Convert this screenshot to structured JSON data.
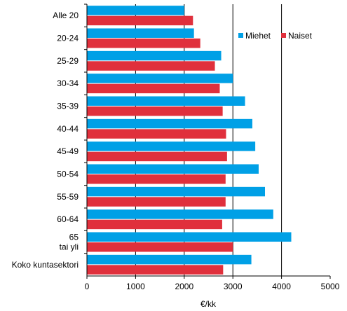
{
  "chart_data": {
    "type": "bar",
    "orientation": "horizontal",
    "categories": [
      [
        "Alle 20"
      ],
      [
        "20-24"
      ],
      [
        "25-29"
      ],
      [
        "30-34"
      ],
      [
        "35-39"
      ],
      [
        "40-44"
      ],
      [
        "45-49"
      ],
      [
        "50-54"
      ],
      [
        "55-59"
      ],
      [
        "60-64"
      ],
      [
        "65",
        "tai yli"
      ],
      [
        "Koko kuntasektori"
      ]
    ],
    "series": [
      {
        "name": "Miehet",
        "color": "#00a0e6",
        "values": [
          2000,
          2200,
          2760,
          3000,
          3250,
          3400,
          3460,
          3530,
          3660,
          3830,
          4200,
          3380
        ]
      },
      {
        "name": "Naiset",
        "color": "#e0303c",
        "values": [
          2180,
          2330,
          2630,
          2730,
          2790,
          2860,
          2880,
          2850,
          2850,
          2780,
          3000,
          2800
        ]
      }
    ],
    "xlabel": "€/kk",
    "xlim": [
      0,
      5000
    ],
    "xticks": [
      "0",
      "1000",
      "2000",
      "3000",
      "4000",
      "5000"
    ],
    "grid": "vertical",
    "legend_position": "top-right"
  }
}
